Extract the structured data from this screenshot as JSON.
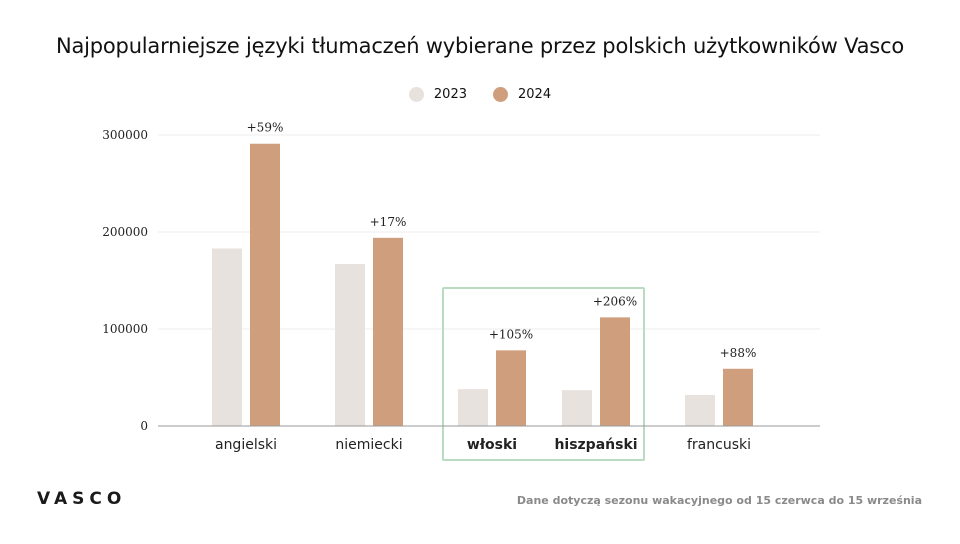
{
  "title": "Najpopularniejsze języki tłumaczeń wybierane przez polskich użytkowników Vasco",
  "logo": "VASCO",
  "footnote": "Dane dotyczą sezonu wakacyjnego od 15 czerwca do 15 września",
  "colors": {
    "series_2023": "#e8e2df",
    "series_2024": "#cf9f7d",
    "highlight_box": "#b9dcc0",
    "gridline": "#eeeeee",
    "axis": "#999999"
  },
  "chart_data": {
    "type": "bar",
    "categories": [
      "angielski",
      "niemiecki",
      "włoski",
      "hiszpański",
      "francuski"
    ],
    "bold_categories": [
      "włoski",
      "hiszpański"
    ],
    "series": [
      {
        "name": "2023",
        "values": [
          183000,
          167000,
          38000,
          37000,
          32000
        ]
      },
      {
        "name": "2024",
        "values": [
          291000,
          194000,
          78000,
          112000,
          59000
        ]
      }
    ],
    "data_labels": [
      "+59%",
      "+17%",
      "+105%",
      "+206%",
      "+88%"
    ],
    "yticks": [
      "0",
      "100000",
      "200000",
      "300000"
    ],
    "ylim": [
      0,
      300000
    ],
    "legend_position": "top-center",
    "grid": true,
    "highlight": [
      "włoski",
      "hiszpański"
    ]
  }
}
